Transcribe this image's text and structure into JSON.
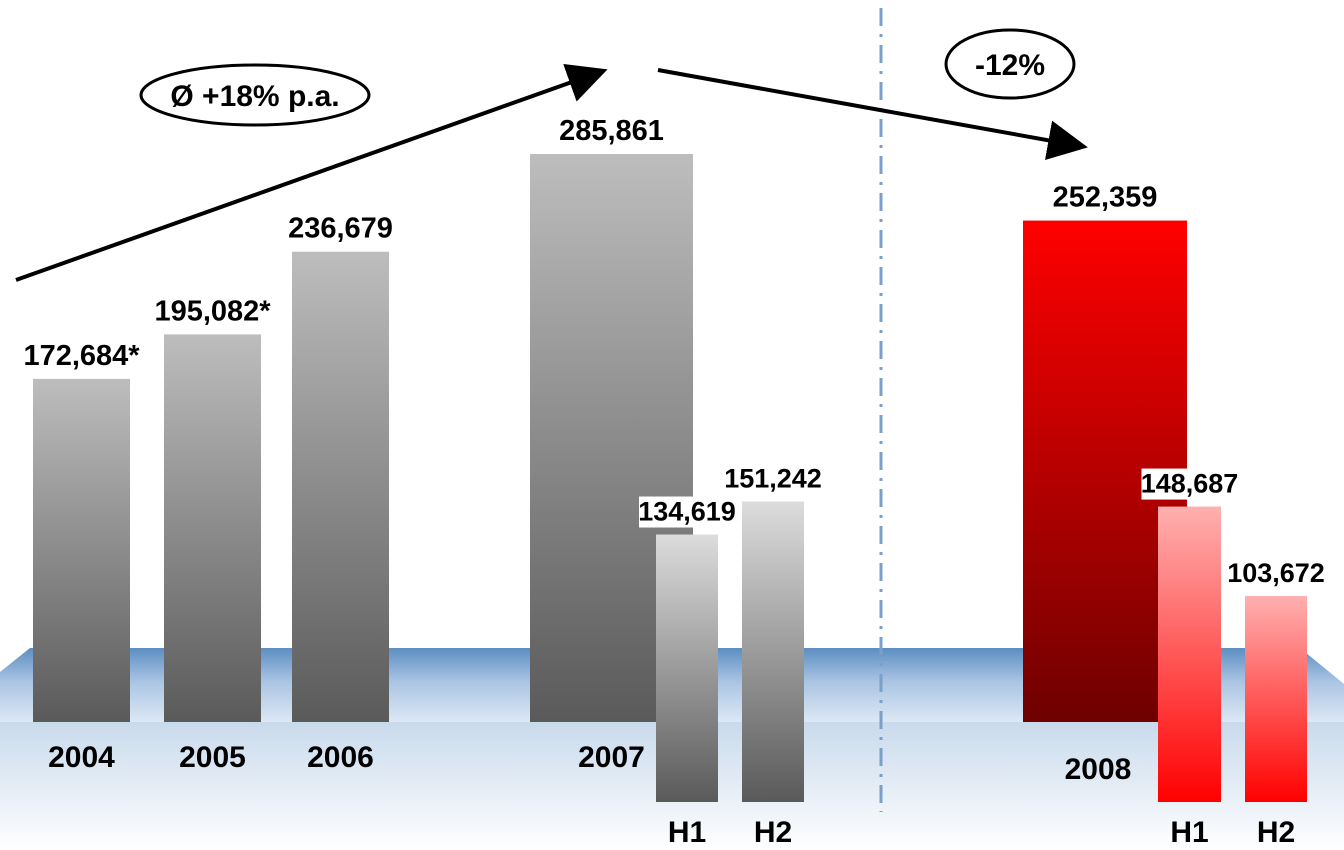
{
  "chart_data": {
    "type": "bar",
    "title": "",
    "xlabel": "",
    "ylabel": "",
    "ylim": [
      0,
      300000
    ],
    "grid": false,
    "colors": {
      "annual_gray": [
        "#bdbdbd",
        "#5a5a5a"
      ],
      "half_gray": [
        "#dcdcdc",
        "#5a5a5a"
      ],
      "annual_red": [
        "#ff0000",
        "#6e0000"
      ],
      "half_red": [
        "#ffb0b0",
        "#ff0000"
      ],
      "band": "#6f9ac8",
      "divider": "#7aa0c8"
    },
    "bars": [
      {
        "id": "y2004",
        "category": "2004",
        "value": 172684,
        "label": "172,684*",
        "kind": "annual_gray"
      },
      {
        "id": "y2005",
        "category": "2005",
        "value": 195082,
        "label": "195,082*",
        "kind": "annual_gray"
      },
      {
        "id": "y2006",
        "category": "2006",
        "value": 236679,
        "label": "236,679",
        "kind": "annual_gray"
      },
      {
        "id": "y2007",
        "category": "2007",
        "value": 285861,
        "label": "285,861",
        "kind": "annual_gray"
      },
      {
        "id": "y2007h1",
        "category": "H1",
        "value": 134619,
        "label": "134,619",
        "kind": "half_gray"
      },
      {
        "id": "y2007h2",
        "category": "H2",
        "value": 151242,
        "label": "151,242",
        "kind": "half_gray"
      },
      {
        "id": "y2008",
        "category": "2008",
        "value": 252359,
        "label": "252,359",
        "kind": "annual_red"
      },
      {
        "id": "y2008h1",
        "category": "H1",
        "value": 148687,
        "label": "148,687",
        "kind": "half_red"
      },
      {
        "id": "y2008h2",
        "category": "H2",
        "value": 103672,
        "label": "103,672",
        "kind": "half_red"
      }
    ],
    "annotations": [
      {
        "id": "cagr",
        "text": "Ø +18% p.a."
      },
      {
        "id": "change",
        "text": "-12%"
      }
    ]
  }
}
